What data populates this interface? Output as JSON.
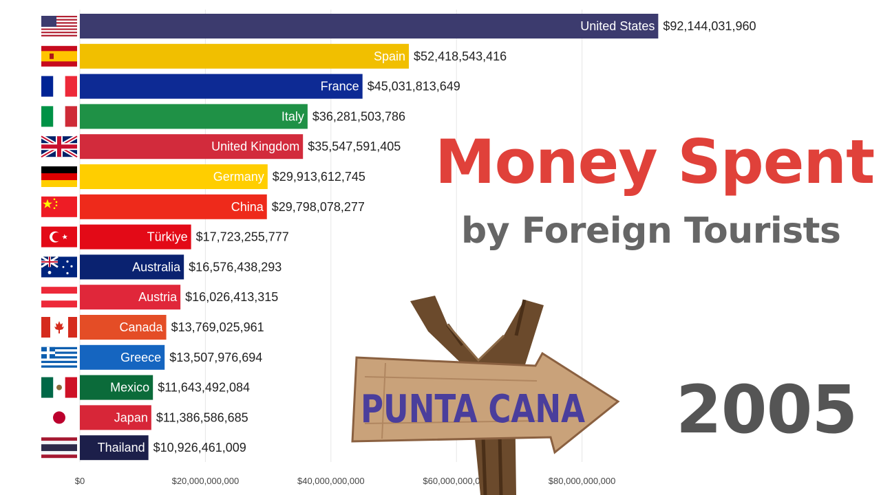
{
  "title": "Money Spent",
  "subtitle": "by Foreign Tourists",
  "year": "2005",
  "sign_text": "PUNTA CANA",
  "chart_data": {
    "type": "bar",
    "orientation": "horizontal",
    "title": "Money Spent",
    "subtitle": "by Foreign Tourists",
    "xlim": [
      0,
      100000000000
    ],
    "xticks": [
      0,
      20000000000,
      40000000000,
      60000000000,
      80000000000
    ],
    "xtick_labels": [
      "$0",
      "$20,000,000,000",
      "$40,000,000,000",
      "$60,000,000,000",
      "$80,000,000,000"
    ],
    "grid": true,
    "categories": [
      "United States",
      "Spain",
      "France",
      "Italy",
      "United Kingdom",
      "Germany",
      "China",
      "Türkiye",
      "Australia",
      "Austria",
      "Canada",
      "Greece",
      "Mexico",
      "Japan",
      "Thailand"
    ],
    "values": [
      92144031960,
      52418543416,
      45031813649,
      36281503786,
      35547591405,
      29913612745,
      29798078277,
      17723255777,
      16576438293,
      16026413315,
      13769025961,
      13507976694,
      11643492084,
      11386586685,
      10926461009
    ],
    "value_labels": [
      "$92,144,031,960",
      "$52,418,543,416",
      "$45,031,813,649",
      "$36,281,503,786",
      "$35,547,591,405",
      "$29,913,612,745",
      "$29,798,078,277",
      "$17,723,255,777",
      "$16,576,438,293",
      "$16,026,413,315",
      "$13,769,025,961",
      "$13,507,976,694",
      "$11,643,492,084",
      "$11,386,586,685",
      "$10,926,461,009"
    ],
    "colors": [
      "#3c3b6e",
      "#f1bf00",
      "#0d2a94",
      "#1f9146",
      "#d22b3c",
      "#ffce00",
      "#ee2a1b",
      "#e30a17",
      "#0a2270",
      "#e0273a",
      "#e44d26",
      "#1565c0",
      "#0b6b3a",
      "#d72638",
      "#1c1f4a"
    ],
    "flags": [
      "us-flag",
      "es-flag",
      "fr-flag",
      "it-flag",
      "uk-flag",
      "de-flag",
      "cn-flag",
      "tr-flag",
      "au-flag",
      "at-flag",
      "ca-flag",
      "gr-flag",
      "mx-flag",
      "jp-flag",
      "th-flag"
    ]
  }
}
